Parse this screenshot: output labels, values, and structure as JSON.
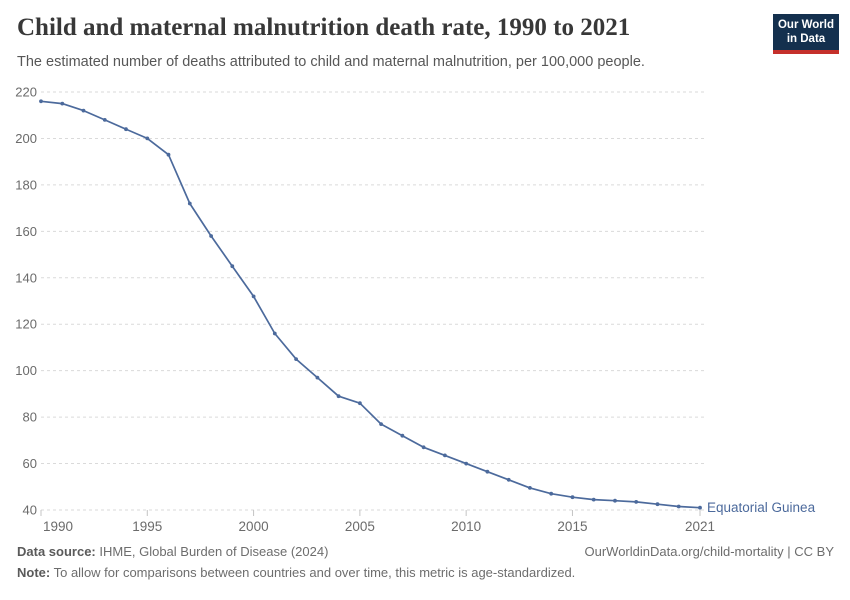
{
  "header": {
    "title": "Child and maternal malnutrition death rate, 1990 to 2021",
    "subtitle": "The estimated number of deaths attributed to child and maternal malnutrition, per 100,000 people.",
    "logo_line1": "Our World",
    "logo_line2": "in Data"
  },
  "chart_data": {
    "type": "line",
    "title": "Child and maternal malnutrition death rate, 1990 to 2021",
    "xlabel": "",
    "ylabel": "",
    "xlim": [
      1990,
      2021
    ],
    "ylim": [
      40,
      220
    ],
    "x_ticks": [
      1990,
      1995,
      2000,
      2005,
      2010,
      2015,
      2021
    ],
    "y_ticks": [
      40,
      60,
      80,
      100,
      120,
      140,
      160,
      180,
      200,
      220
    ],
    "grid": "horizontal-dashed",
    "legend_position": "end-of-line-label",
    "series": [
      {
        "name": "Equatorial Guinea",
        "color": "#4c6a9c",
        "x": [
          1990,
          1991,
          1992,
          1993,
          1994,
          1995,
          1996,
          1997,
          1998,
          1999,
          2000,
          2001,
          2002,
          2003,
          2004,
          2005,
          2006,
          2007,
          2008,
          2009,
          2010,
          2011,
          2012,
          2013,
          2014,
          2015,
          2016,
          2017,
          2018,
          2019,
          2020,
          2021
        ],
        "values": [
          216,
          215,
          212,
          208,
          204,
          200,
          193,
          172,
          158,
          145,
          132,
          116,
          105,
          97,
          89,
          86,
          77,
          72,
          67,
          63.5,
          60,
          56.5,
          53,
          49.5,
          47,
          45.5,
          44.5,
          44,
          43.5,
          42.5,
          41.5,
          41
        ]
      }
    ]
  },
  "colors": {
    "line": "#4c6a9c",
    "gridline": "#dadada",
    "tick_label": "#6b6b6b",
    "tick_mark": "#c4c4c4",
    "logo_navy": "#14304e",
    "logo_red": "#c5302b"
  },
  "footer": {
    "datasource_label": "Data source:",
    "datasource_text": " IHME, Global Burden of Disease (2024)",
    "note_label": "Note:",
    "note_text": " To allow for comparisons between countries and over time, this metric is age-standardized.",
    "right_text": "OurWorldinData.org/child-mortality | CC BY"
  }
}
